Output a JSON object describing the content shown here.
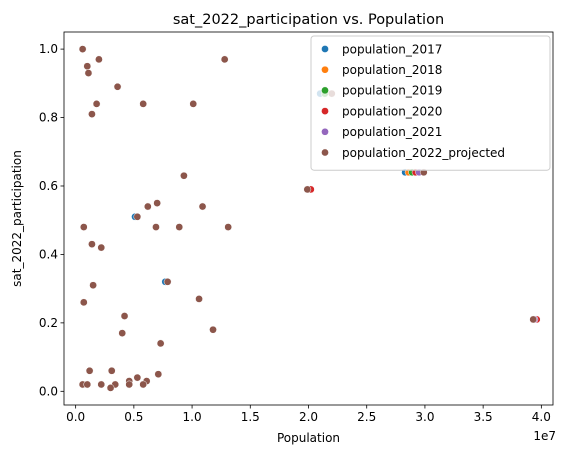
{
  "chart_data": {
    "type": "scatter",
    "title": "sat_2022_participation vs. Population",
    "xlabel": "Population",
    "ylabel": "sat_2022_participation",
    "x_offset_label": "1e7",
    "x_scale": 10000000,
    "xlim": [
      -1000000,
      41000000
    ],
    "ylim": [
      -0.04,
      1.05
    ],
    "xticks": [
      0,
      5000000,
      10000000,
      15000000,
      20000000,
      25000000,
      30000000,
      35000000,
      40000000
    ],
    "xtick_labels": [
      "0.0",
      "0.5",
      "1.0",
      "1.5",
      "2.0",
      "2.5",
      "3.0",
      "3.5",
      "4.0"
    ],
    "yticks": [
      0.0,
      0.2,
      0.4,
      0.6,
      0.8,
      1.0
    ],
    "ytick_labels": [
      "0.0",
      "0.2",
      "0.4",
      "0.6",
      "0.8",
      "1.0"
    ],
    "grid": false,
    "legend_position": "top-right",
    "series": [
      {
        "name": "population_2017",
        "color": "#1f77b4",
        "points": [
          [
            28300000,
            0.64
          ],
          [
            7700000,
            0.32
          ],
          [
            5100000,
            0.51
          ],
          [
            39500000,
            0.21
          ],
          [
            21000000,
            0.87
          ],
          [
            20000000,
            0.59
          ]
        ]
      },
      {
        "name": "population_2018",
        "color": "#ff7f0e",
        "points": [
          [
            28600000,
            0.64
          ],
          [
            39550000,
            0.21
          ]
        ]
      },
      {
        "name": "population_2019",
        "color": "#2ca02c",
        "points": [
          [
            28900000,
            0.64
          ],
          [
            21400000,
            0.87
          ]
        ]
      },
      {
        "name": "population_2020",
        "color": "#d62728",
        "points": [
          [
            29200000,
            0.64
          ],
          [
            20200000,
            0.59
          ],
          [
            39600000,
            0.21
          ]
        ]
      },
      {
        "name": "population_2021",
        "color": "#9467bd",
        "points": [
          [
            29500000,
            0.64
          ],
          [
            39400000,
            0.21
          ]
        ]
      },
      {
        "name": "population_2022_projected",
        "color": "#8c564b",
        "points": [
          [
            600000,
            1.0
          ],
          [
            1000000,
            0.95
          ],
          [
            1100000,
            0.93
          ],
          [
            2000000,
            0.97
          ],
          [
            3600000,
            0.89
          ],
          [
            1800000,
            0.84
          ],
          [
            5800000,
            0.84
          ],
          [
            1400000,
            0.81
          ],
          [
            12800000,
            0.97
          ],
          [
            10100000,
            0.84
          ],
          [
            29900000,
            0.64
          ],
          [
            9300000,
            0.63
          ],
          [
            22000000,
            0.87
          ],
          [
            19900000,
            0.59
          ],
          [
            7000000,
            0.55
          ],
          [
            6200000,
            0.54
          ],
          [
            10900000,
            0.54
          ],
          [
            5300000,
            0.51
          ],
          [
            700000,
            0.48
          ],
          [
            6900000,
            0.48
          ],
          [
            8900000,
            0.48
          ],
          [
            13100000,
            0.48
          ],
          [
            1400000,
            0.43
          ],
          [
            2200000,
            0.42
          ],
          [
            7900000,
            0.32
          ],
          [
            1500000,
            0.31
          ],
          [
            10600000,
            0.27
          ],
          [
            700000,
            0.26
          ],
          [
            4200000,
            0.22
          ],
          [
            39300000,
            0.21
          ],
          [
            11800000,
            0.18
          ],
          [
            4000000,
            0.17
          ],
          [
            7300000,
            0.14
          ],
          [
            1200000,
            0.06
          ],
          [
            3100000,
            0.06
          ],
          [
            7100000,
            0.05
          ],
          [
            5300000,
            0.04
          ],
          [
            4600000,
            0.03
          ],
          [
            6100000,
            0.03
          ],
          [
            600000,
            0.02
          ],
          [
            1000000,
            0.02
          ],
          [
            2200000,
            0.02
          ],
          [
            3400000,
            0.02
          ],
          [
            4600000,
            0.02
          ],
          [
            5800000,
            0.02
          ],
          [
            3000000,
            0.01
          ]
        ]
      }
    ]
  }
}
